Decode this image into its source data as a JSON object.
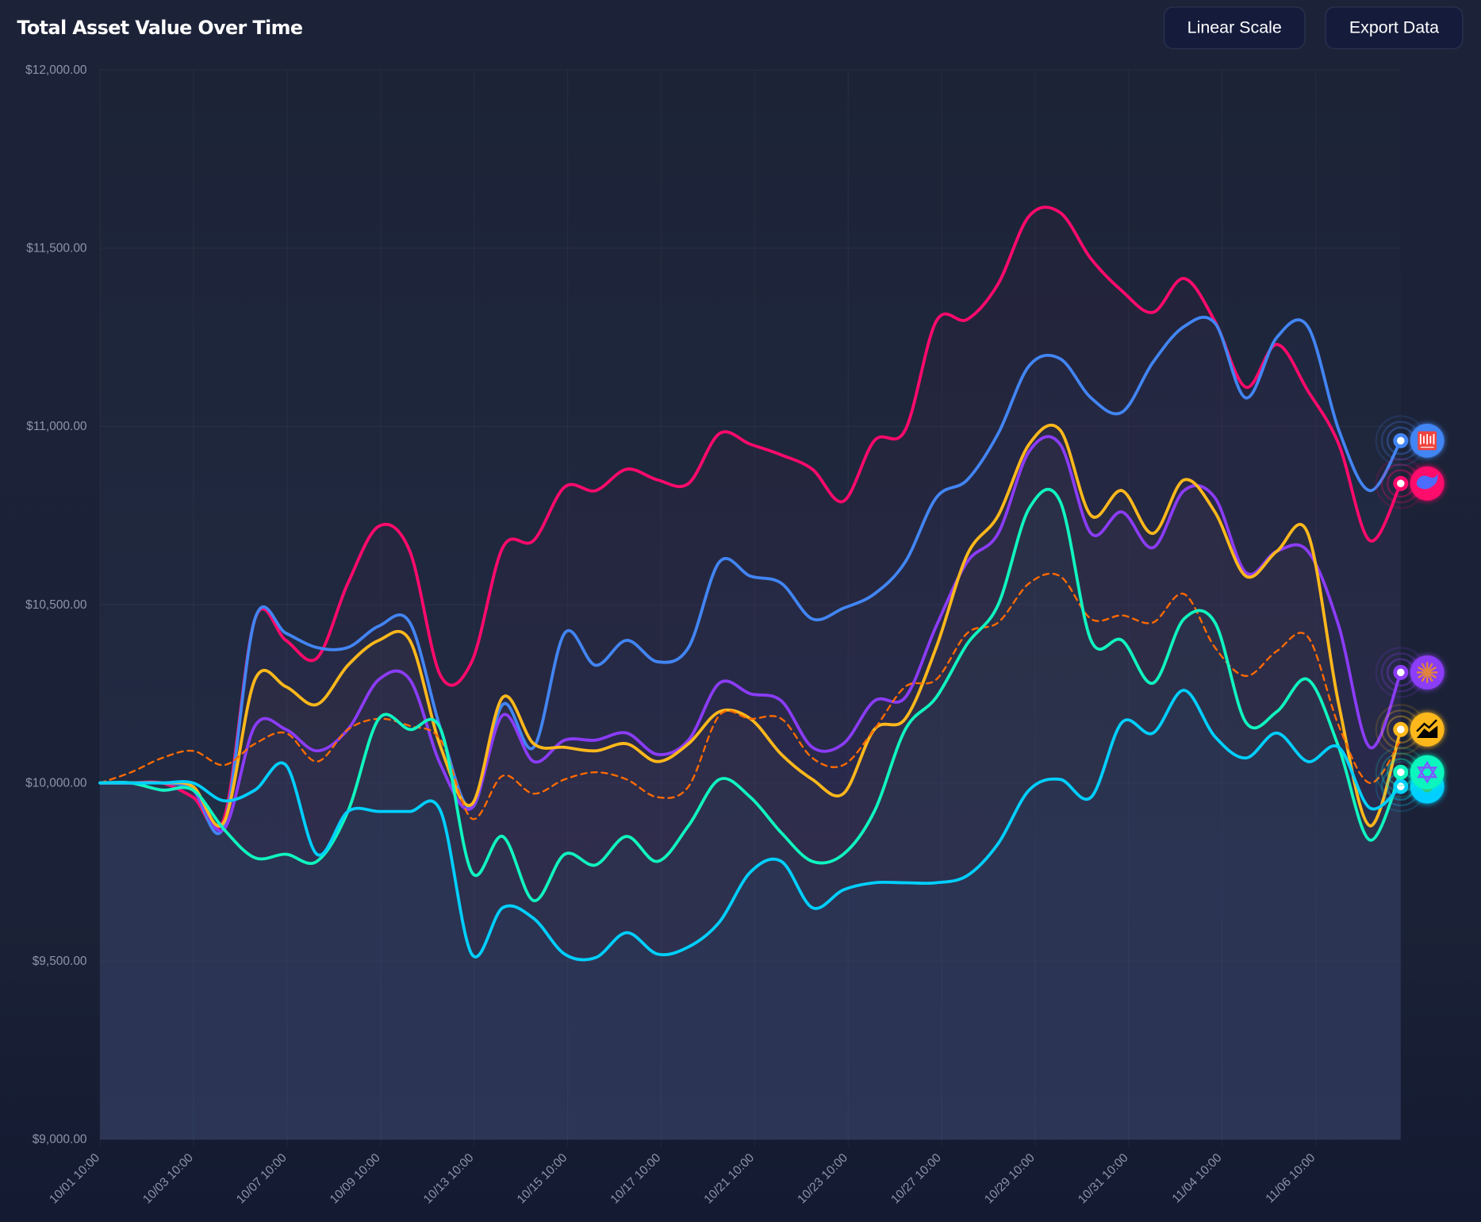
{
  "header": {
    "title": "Total Asset Value Over Time",
    "buttons": {
      "scale": "Linear Scale",
      "export": "Export Data"
    }
  },
  "chart_data": {
    "type": "line",
    "title": "Total Asset Value Over Time",
    "xlabel": "",
    "ylabel": "",
    "ylim": [
      9000,
      12000
    ],
    "y_ticks": [
      {
        "value": 12000,
        "label": "$12,000.00"
      },
      {
        "value": 11500,
        "label": "$11,500.00"
      },
      {
        "value": 11000,
        "label": "$11,000.00"
      },
      {
        "value": 10500,
        "label": "$10,500.00"
      },
      {
        "value": 10000,
        "label": "$10,000.00"
      },
      {
        "value": 9500,
        "label": "$9,500.00"
      },
      {
        "value": 9000,
        "label": "$9,000.00"
      }
    ],
    "x_ticks": [
      "10/01 10:00",
      "10/03 10:00",
      "10/07 10:00",
      "10/09 10:00",
      "10/13 10:00",
      "10/15 10:00",
      "10/17 10:00",
      "10/21 10:00",
      "10/23 10:00",
      "10/27 10:00",
      "10/29 10:00",
      "10/31 10:00",
      "11/04 10:00",
      "11/06 10:00"
    ],
    "grid": true,
    "legend": "none (end-of-line logo markers)",
    "series": [
      {
        "color": "#ff0a6c",
        "dashed": false,
        "icon": "whale-logo-icon",
        "values": [
          10000,
          10000,
          10000,
          9960,
          9900,
          10460,
          10400,
          10350,
          10560,
          10720,
          10650,
          10300,
          10340,
          10660,
          10680,
          10830,
          10820,
          10880,
          10850,
          10840,
          10980,
          10950,
          10920,
          10880,
          10790,
          10960,
          10990,
          11295,
          11300,
          11400,
          11590,
          11600,
          11470,
          11380,
          11320,
          11415,
          11295,
          11110,
          11230,
          11100,
          10950,
          10680,
          10840
        ]
      },
      {
        "color": "#4285f4",
        "dashed": false,
        "icon": "bars-logo-icon",
        "values": [
          10000,
          10000,
          10000,
          9980,
          9880,
          10460,
          10420,
          10380,
          10380,
          10440,
          10450,
          10150,
          9930,
          10220,
          10100,
          10420,
          10330,
          10400,
          10340,
          10380,
          10620,
          10580,
          10560,
          10460,
          10490,
          10530,
          10620,
          10800,
          10850,
          10980,
          11170,
          11190,
          11080,
          11040,
          11180,
          11280,
          11290,
          11080,
          11250,
          11280,
          10990,
          10820,
          10960
        ]
      },
      {
        "color": "#8b3cf7",
        "dashed": false,
        "icon": "starburst-logo-icon",
        "values": [
          10000,
          10000,
          9980,
          9980,
          9870,
          10160,
          10150,
          10090,
          10150,
          10290,
          10290,
          10050,
          9930,
          10190,
          10060,
          10120,
          10120,
          10140,
          10080,
          10120,
          10280,
          10250,
          10230,
          10100,
          10110,
          10230,
          10240,
          10440,
          10620,
          10700,
          10930,
          10950,
          10700,
          10760,
          10660,
          10820,
          10800,
          10590,
          10650,
          10650,
          10440,
          10100,
          10310
        ]
      },
      {
        "color": "#ffb81c",
        "dashed": false,
        "icon": "trend-chart-logo-icon",
        "values": [
          10000,
          10000,
          10000,
          9990,
          9890,
          10290,
          10270,
          10220,
          10330,
          10400,
          10400,
          10100,
          9940,
          10240,
          10110,
          10100,
          10090,
          10110,
          10060,
          10110,
          10200,
          10180,
          10080,
          10010,
          9970,
          10150,
          10180,
          10380,
          10640,
          10750,
          10950,
          10990,
          10750,
          10820,
          10700,
          10850,
          10760,
          10580,
          10650,
          10700,
          10220,
          9880,
          10150
        ]
      },
      {
        "color": "#ff6a00",
        "dashed": true,
        "icon": "",
        "values": [
          10000,
          10030,
          10070,
          10090,
          10050,
          10110,
          10140,
          10060,
          10150,
          10180,
          10160,
          10120,
          9900,
          10020,
          9970,
          10010,
          10030,
          10010,
          9960,
          9990,
          10190,
          10180,
          10180,
          10070,
          10050,
          10150,
          10270,
          10290,
          10420,
          10450,
          10560,
          10580,
          10460,
          10470,
          10450,
          10530,
          10380,
          10300,
          10370,
          10410,
          10160,
          10000,
          10120
        ]
      },
      {
        "color": "#10f5bf",
        "dashed": false,
        "icon": "hexagon-knot-logo-icon",
        "values": [
          10000,
          10000,
          9980,
          9980,
          9870,
          9790,
          9800,
          9780,
          9920,
          10180,
          10150,
          10150,
          9750,
          9850,
          9670,
          9800,
          9770,
          9850,
          9780,
          9880,
          10010,
          9960,
          9860,
          9780,
          9800,
          9920,
          10150,
          10240,
          10390,
          10500,
          10770,
          10790,
          10400,
          10400,
          10280,
          10460,
          10450,
          10170,
          10200,
          10290,
          10100,
          9840,
          10030
        ]
      },
      {
        "color": "#00cfff",
        "dashed": false,
        "icon": "circle-logo-icon",
        "values": [
          10000,
          10000,
          10000,
          10000,
          9950,
          9980,
          10050,
          9800,
          9920,
          9920,
          9920,
          9920,
          9520,
          9650,
          9620,
          9520,
          9510,
          9580,
          9520,
          9540,
          9610,
          9750,
          9780,
          9650,
          9700,
          9720,
          9720,
          9720,
          9740,
          9830,
          9980,
          10010,
          9960,
          10170,
          10140,
          10260,
          10130,
          10070,
          10140,
          10060,
          10100,
          9930,
          9990
        ]
      }
    ]
  }
}
